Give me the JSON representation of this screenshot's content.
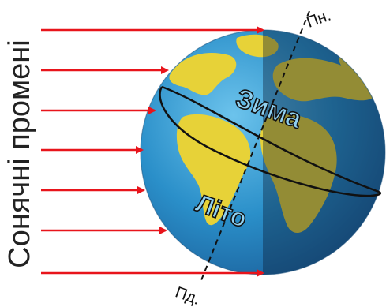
{
  "diagram": {
    "side_label": "Сонячні промені",
    "north_label": "Пн.",
    "south_label": "Пд.",
    "winter_label": "Зима",
    "summer_label": "Літо",
    "ray_count": 7,
    "colors": {
      "ocean": "#2a8fc9",
      "land": "#e7d238",
      "ray": "#e8141b",
      "label_fill": "#8fd0f0",
      "label_stroke": "#111111",
      "night_shade": "#0a1a33"
    }
  }
}
